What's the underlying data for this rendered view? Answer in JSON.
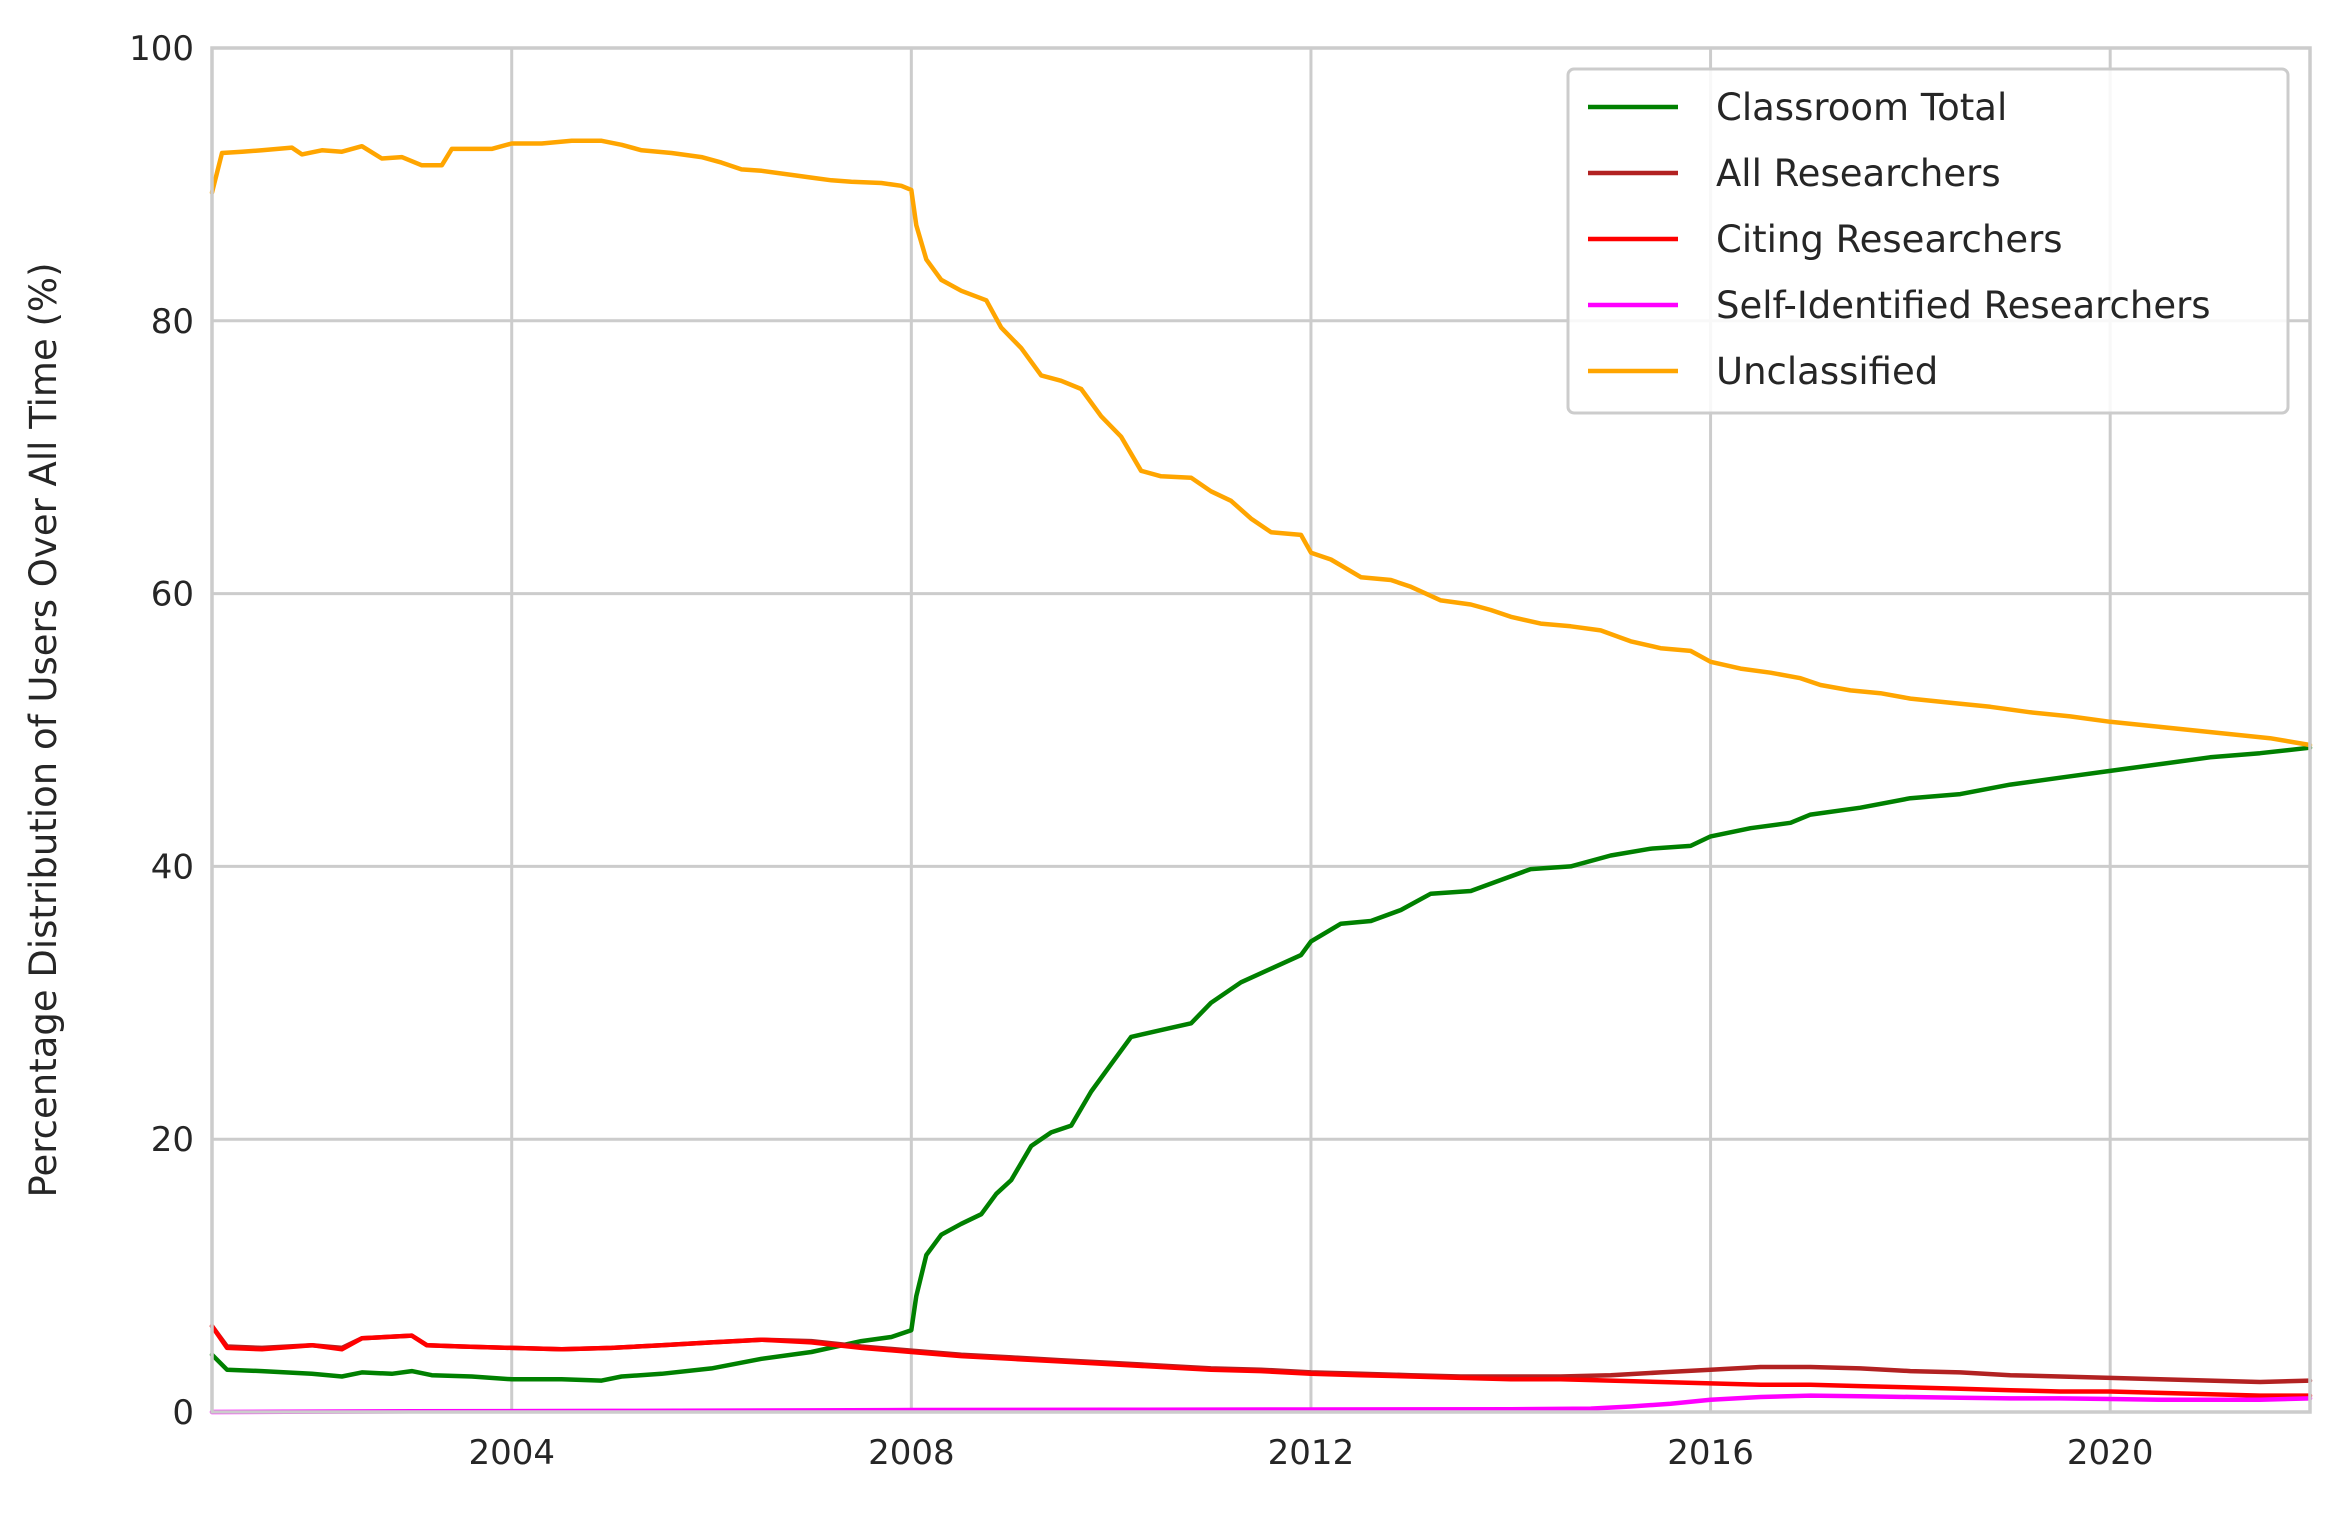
{
  "chart_data": {
    "type": "line",
    "title": "",
    "xlabel": "",
    "ylabel": "Percentage Distribution of Users Over All Time (%)",
    "xlim": [
      2001.0,
      2022.0
    ],
    "ylim": [
      0,
      100
    ],
    "x_ticks": [
      2004,
      2008,
      2012,
      2016,
      2020
    ],
    "y_ticks": [
      0,
      20,
      40,
      60,
      80,
      100
    ],
    "grid": true,
    "legend_position": "top-right",
    "series": [
      {
        "name": "Classroom Total",
        "color": "#008000",
        "points": [
          [
            2001.0,
            4.2
          ],
          [
            2001.15,
            3.1
          ],
          [
            2001.5,
            3.0
          ],
          [
            2002.0,
            2.8
          ],
          [
            2002.3,
            2.6
          ],
          [
            2002.5,
            2.9
          ],
          [
            2002.8,
            2.8
          ],
          [
            2003.0,
            3.0
          ],
          [
            2003.2,
            2.7
          ],
          [
            2003.6,
            2.6
          ],
          [
            2004.0,
            2.4
          ],
          [
            2004.5,
            2.4
          ],
          [
            2004.9,
            2.3
          ],
          [
            2005.1,
            2.6
          ],
          [
            2005.5,
            2.8
          ],
          [
            2006.0,
            3.2
          ],
          [
            2006.5,
            3.9
          ],
          [
            2007.0,
            4.4
          ],
          [
            2007.5,
            5.2
          ],
          [
            2007.8,
            5.5
          ],
          [
            2008.0,
            6.0
          ],
          [
            2008.05,
            8.5
          ],
          [
            2008.15,
            11.5
          ],
          [
            2008.3,
            13.0
          ],
          [
            2008.5,
            13.8
          ],
          [
            2008.7,
            14.5
          ],
          [
            2008.85,
            16.0
          ],
          [
            2009.0,
            17.0
          ],
          [
            2009.2,
            19.5
          ],
          [
            2009.4,
            20.5
          ],
          [
            2009.6,
            21.0
          ],
          [
            2009.8,
            23.5
          ],
          [
            2010.0,
            25.5
          ],
          [
            2010.2,
            27.5
          ],
          [
            2010.5,
            28.0
          ],
          [
            2010.8,
            28.5
          ],
          [
            2011.0,
            30.0
          ],
          [
            2011.3,
            31.5
          ],
          [
            2011.6,
            32.5
          ],
          [
            2011.9,
            33.5
          ],
          [
            2012.0,
            34.5
          ],
          [
            2012.3,
            35.8
          ],
          [
            2012.6,
            36.0
          ],
          [
            2012.9,
            36.8
          ],
          [
            2013.2,
            38.0
          ],
          [
            2013.6,
            38.2
          ],
          [
            2013.9,
            39.0
          ],
          [
            2014.2,
            39.8
          ],
          [
            2014.6,
            40.0
          ],
          [
            2015.0,
            40.8
          ],
          [
            2015.4,
            41.3
          ],
          [
            2015.8,
            41.5
          ],
          [
            2016.0,
            42.2
          ],
          [
            2016.4,
            42.8
          ],
          [
            2016.8,
            43.2
          ],
          [
            2017.0,
            43.8
          ],
          [
            2017.5,
            44.3
          ],
          [
            2018.0,
            45.0
          ],
          [
            2018.5,
            45.3
          ],
          [
            2019.0,
            46.0
          ],
          [
            2019.5,
            46.5
          ],
          [
            2020.0,
            47.0
          ],
          [
            2020.5,
            47.5
          ],
          [
            2021.0,
            48.0
          ],
          [
            2021.5,
            48.3
          ],
          [
            2022.0,
            48.7
          ]
        ]
      },
      {
        "name": "All Researchers",
        "color": "#B22222",
        "points": [
          [
            2001.0,
            6.3
          ],
          [
            2001.15,
            4.8
          ],
          [
            2001.5,
            4.7
          ],
          [
            2002.0,
            4.9
          ],
          [
            2002.3,
            4.7
          ],
          [
            2002.5,
            5.4
          ],
          [
            2003.0,
            5.6
          ],
          [
            2003.15,
            4.9
          ],
          [
            2003.5,
            4.8
          ],
          [
            2004.0,
            4.7
          ],
          [
            2004.5,
            4.6
          ],
          [
            2005.0,
            4.7
          ],
          [
            2005.5,
            4.9
          ],
          [
            2006.0,
            5.1
          ],
          [
            2006.5,
            5.3
          ],
          [
            2007.0,
            5.2
          ],
          [
            2007.5,
            4.8
          ],
          [
            2008.0,
            4.5
          ],
          [
            2008.5,
            4.2
          ],
          [
            2009.0,
            4.0
          ],
          [
            2009.5,
            3.8
          ],
          [
            2010.0,
            3.6
          ],
          [
            2010.5,
            3.4
          ],
          [
            2011.0,
            3.2
          ],
          [
            2011.5,
            3.1
          ],
          [
            2012.0,
            2.9
          ],
          [
            2012.5,
            2.8
          ],
          [
            2013.0,
            2.7
          ],
          [
            2013.5,
            2.6
          ],
          [
            2014.0,
            2.6
          ],
          [
            2014.5,
            2.6
          ],
          [
            2015.0,
            2.7
          ],
          [
            2015.5,
            2.9
          ],
          [
            2016.0,
            3.1
          ],
          [
            2016.5,
            3.3
          ],
          [
            2017.0,
            3.3
          ],
          [
            2017.5,
            3.2
          ],
          [
            2018.0,
            3.0
          ],
          [
            2018.5,
            2.9
          ],
          [
            2019.0,
            2.7
          ],
          [
            2019.5,
            2.6
          ],
          [
            2020.0,
            2.5
          ],
          [
            2020.5,
            2.4
          ],
          [
            2021.0,
            2.3
          ],
          [
            2021.5,
            2.2
          ],
          [
            2022.0,
            2.3
          ]
        ]
      },
      {
        "name": "Citing Researchers",
        "color": "#FF0000",
        "points": [
          [
            2001.0,
            6.3
          ],
          [
            2001.15,
            4.7
          ],
          [
            2001.5,
            4.6
          ],
          [
            2002.0,
            4.9
          ],
          [
            2002.3,
            4.6
          ],
          [
            2002.5,
            5.4
          ],
          [
            2003.0,
            5.6
          ],
          [
            2003.15,
            4.9
          ],
          [
            2003.5,
            4.8
          ],
          [
            2004.0,
            4.7
          ],
          [
            2004.5,
            4.6
          ],
          [
            2005.0,
            4.7
          ],
          [
            2005.5,
            4.9
          ],
          [
            2006.0,
            5.1
          ],
          [
            2006.5,
            5.3
          ],
          [
            2007.0,
            5.1
          ],
          [
            2007.5,
            4.7
          ],
          [
            2008.0,
            4.4
          ],
          [
            2008.5,
            4.1
          ],
          [
            2009.0,
            3.9
          ],
          [
            2009.5,
            3.7
          ],
          [
            2010.0,
            3.5
          ],
          [
            2010.5,
            3.3
          ],
          [
            2011.0,
            3.1
          ],
          [
            2011.5,
            3.0
          ],
          [
            2012.0,
            2.8
          ],
          [
            2012.5,
            2.7
          ],
          [
            2013.0,
            2.6
          ],
          [
            2013.5,
            2.5
          ],
          [
            2014.0,
            2.4
          ],
          [
            2014.5,
            2.4
          ],
          [
            2015.0,
            2.3
          ],
          [
            2015.5,
            2.2
          ],
          [
            2016.0,
            2.1
          ],
          [
            2016.5,
            2.0
          ],
          [
            2017.0,
            2.0
          ],
          [
            2017.5,
            1.9
          ],
          [
            2018.0,
            1.8
          ],
          [
            2018.5,
            1.7
          ],
          [
            2019.0,
            1.6
          ],
          [
            2019.5,
            1.5
          ],
          [
            2020.0,
            1.5
          ],
          [
            2020.5,
            1.4
          ],
          [
            2021.0,
            1.3
          ],
          [
            2021.5,
            1.2
          ],
          [
            2022.0,
            1.2
          ]
        ]
      },
      {
        "name": "Self-Identified Researchers",
        "color": "#FF00FF",
        "points": [
          [
            2001.0,
            0.0
          ],
          [
            2003.0,
            0.05
          ],
          [
            2005.0,
            0.08
          ],
          [
            2007.0,
            0.12
          ],
          [
            2008.0,
            0.15
          ],
          [
            2010.0,
            0.16
          ],
          [
            2012.0,
            0.18
          ],
          [
            2014.0,
            0.2
          ],
          [
            2014.8,
            0.25
          ],
          [
            2015.2,
            0.4
          ],
          [
            2015.6,
            0.6
          ],
          [
            2016.0,
            0.9
          ],
          [
            2016.5,
            1.1
          ],
          [
            2017.0,
            1.2
          ],
          [
            2017.5,
            1.15
          ],
          [
            2018.0,
            1.1
          ],
          [
            2018.5,
            1.05
          ],
          [
            2019.0,
            1.0
          ],
          [
            2019.5,
            1.0
          ],
          [
            2020.0,
            0.95
          ],
          [
            2020.5,
            0.9
          ],
          [
            2021.0,
            0.9
          ],
          [
            2021.5,
            0.9
          ],
          [
            2022.0,
            1.0
          ]
        ]
      },
      {
        "name": "Unclassified",
        "color": "#FFA500",
        "points": [
          [
            2001.0,
            89.4
          ],
          [
            2001.1,
            92.3
          ],
          [
            2001.3,
            92.4
          ],
          [
            2001.5,
            92.5
          ],
          [
            2001.8,
            92.7
          ],
          [
            2001.9,
            92.2
          ],
          [
            2002.1,
            92.5
          ],
          [
            2002.3,
            92.4
          ],
          [
            2002.5,
            92.8
          ],
          [
            2002.7,
            91.9
          ],
          [
            2002.9,
            92.0
          ],
          [
            2003.1,
            91.4
          ],
          [
            2003.3,
            91.4
          ],
          [
            2003.4,
            92.6
          ],
          [
            2003.8,
            92.6
          ],
          [
            2004.0,
            93.0
          ],
          [
            2004.3,
            93.0
          ],
          [
            2004.6,
            93.2
          ],
          [
            2004.9,
            93.2
          ],
          [
            2005.1,
            92.9
          ],
          [
            2005.3,
            92.5
          ],
          [
            2005.6,
            92.3
          ],
          [
            2005.9,
            92.0
          ],
          [
            2006.1,
            91.6
          ],
          [
            2006.3,
            91.1
          ],
          [
            2006.5,
            91.0
          ],
          [
            2006.8,
            90.7
          ],
          [
            2007.0,
            90.5
          ],
          [
            2007.2,
            90.3
          ],
          [
            2007.4,
            90.2
          ],
          [
            2007.7,
            90.1
          ],
          [
            2007.9,
            89.9
          ],
          [
            2008.0,
            89.6
          ],
          [
            2008.05,
            87.0
          ],
          [
            2008.15,
            84.5
          ],
          [
            2008.3,
            83.0
          ],
          [
            2008.5,
            82.2
          ],
          [
            2008.75,
            81.5
          ],
          [
            2008.9,
            79.5
          ],
          [
            2009.1,
            78.0
          ],
          [
            2009.3,
            76.0
          ],
          [
            2009.5,
            75.6
          ],
          [
            2009.7,
            75.0
          ],
          [
            2009.9,
            73.0
          ],
          [
            2010.1,
            71.5
          ],
          [
            2010.3,
            69.0
          ],
          [
            2010.5,
            68.6
          ],
          [
            2010.8,
            68.5
          ],
          [
            2011.0,
            67.5
          ],
          [
            2011.2,
            66.8
          ],
          [
            2011.4,
            65.5
          ],
          [
            2011.6,
            64.5
          ],
          [
            2011.9,
            64.3
          ],
          [
            2012.0,
            63.0
          ],
          [
            2012.2,
            62.5
          ],
          [
            2012.5,
            61.2
          ],
          [
            2012.8,
            61.0
          ],
          [
            2013.0,
            60.5
          ],
          [
            2013.3,
            59.5
          ],
          [
            2013.6,
            59.2
          ],
          [
            2013.8,
            58.8
          ],
          [
            2014.0,
            58.3
          ],
          [
            2014.3,
            57.8
          ],
          [
            2014.6,
            57.6
          ],
          [
            2014.9,
            57.3
          ],
          [
            2015.2,
            56.5
          ],
          [
            2015.5,
            56.0
          ],
          [
            2015.8,
            55.8
          ],
          [
            2016.0,
            55.0
          ],
          [
            2016.3,
            54.5
          ],
          [
            2016.6,
            54.2
          ],
          [
            2016.9,
            53.8
          ],
          [
            2017.1,
            53.3
          ],
          [
            2017.4,
            52.9
          ],
          [
            2017.7,
            52.7
          ],
          [
            2018.0,
            52.3
          ],
          [
            2018.4,
            52.0
          ],
          [
            2018.8,
            51.7
          ],
          [
            2019.2,
            51.3
          ],
          [
            2019.6,
            51.0
          ],
          [
            2020.0,
            50.6
          ],
          [
            2020.4,
            50.3
          ],
          [
            2020.8,
            50.0
          ],
          [
            2021.2,
            49.7
          ],
          [
            2021.6,
            49.4
          ],
          [
            2022.0,
            48.9
          ]
        ]
      }
    ]
  }
}
